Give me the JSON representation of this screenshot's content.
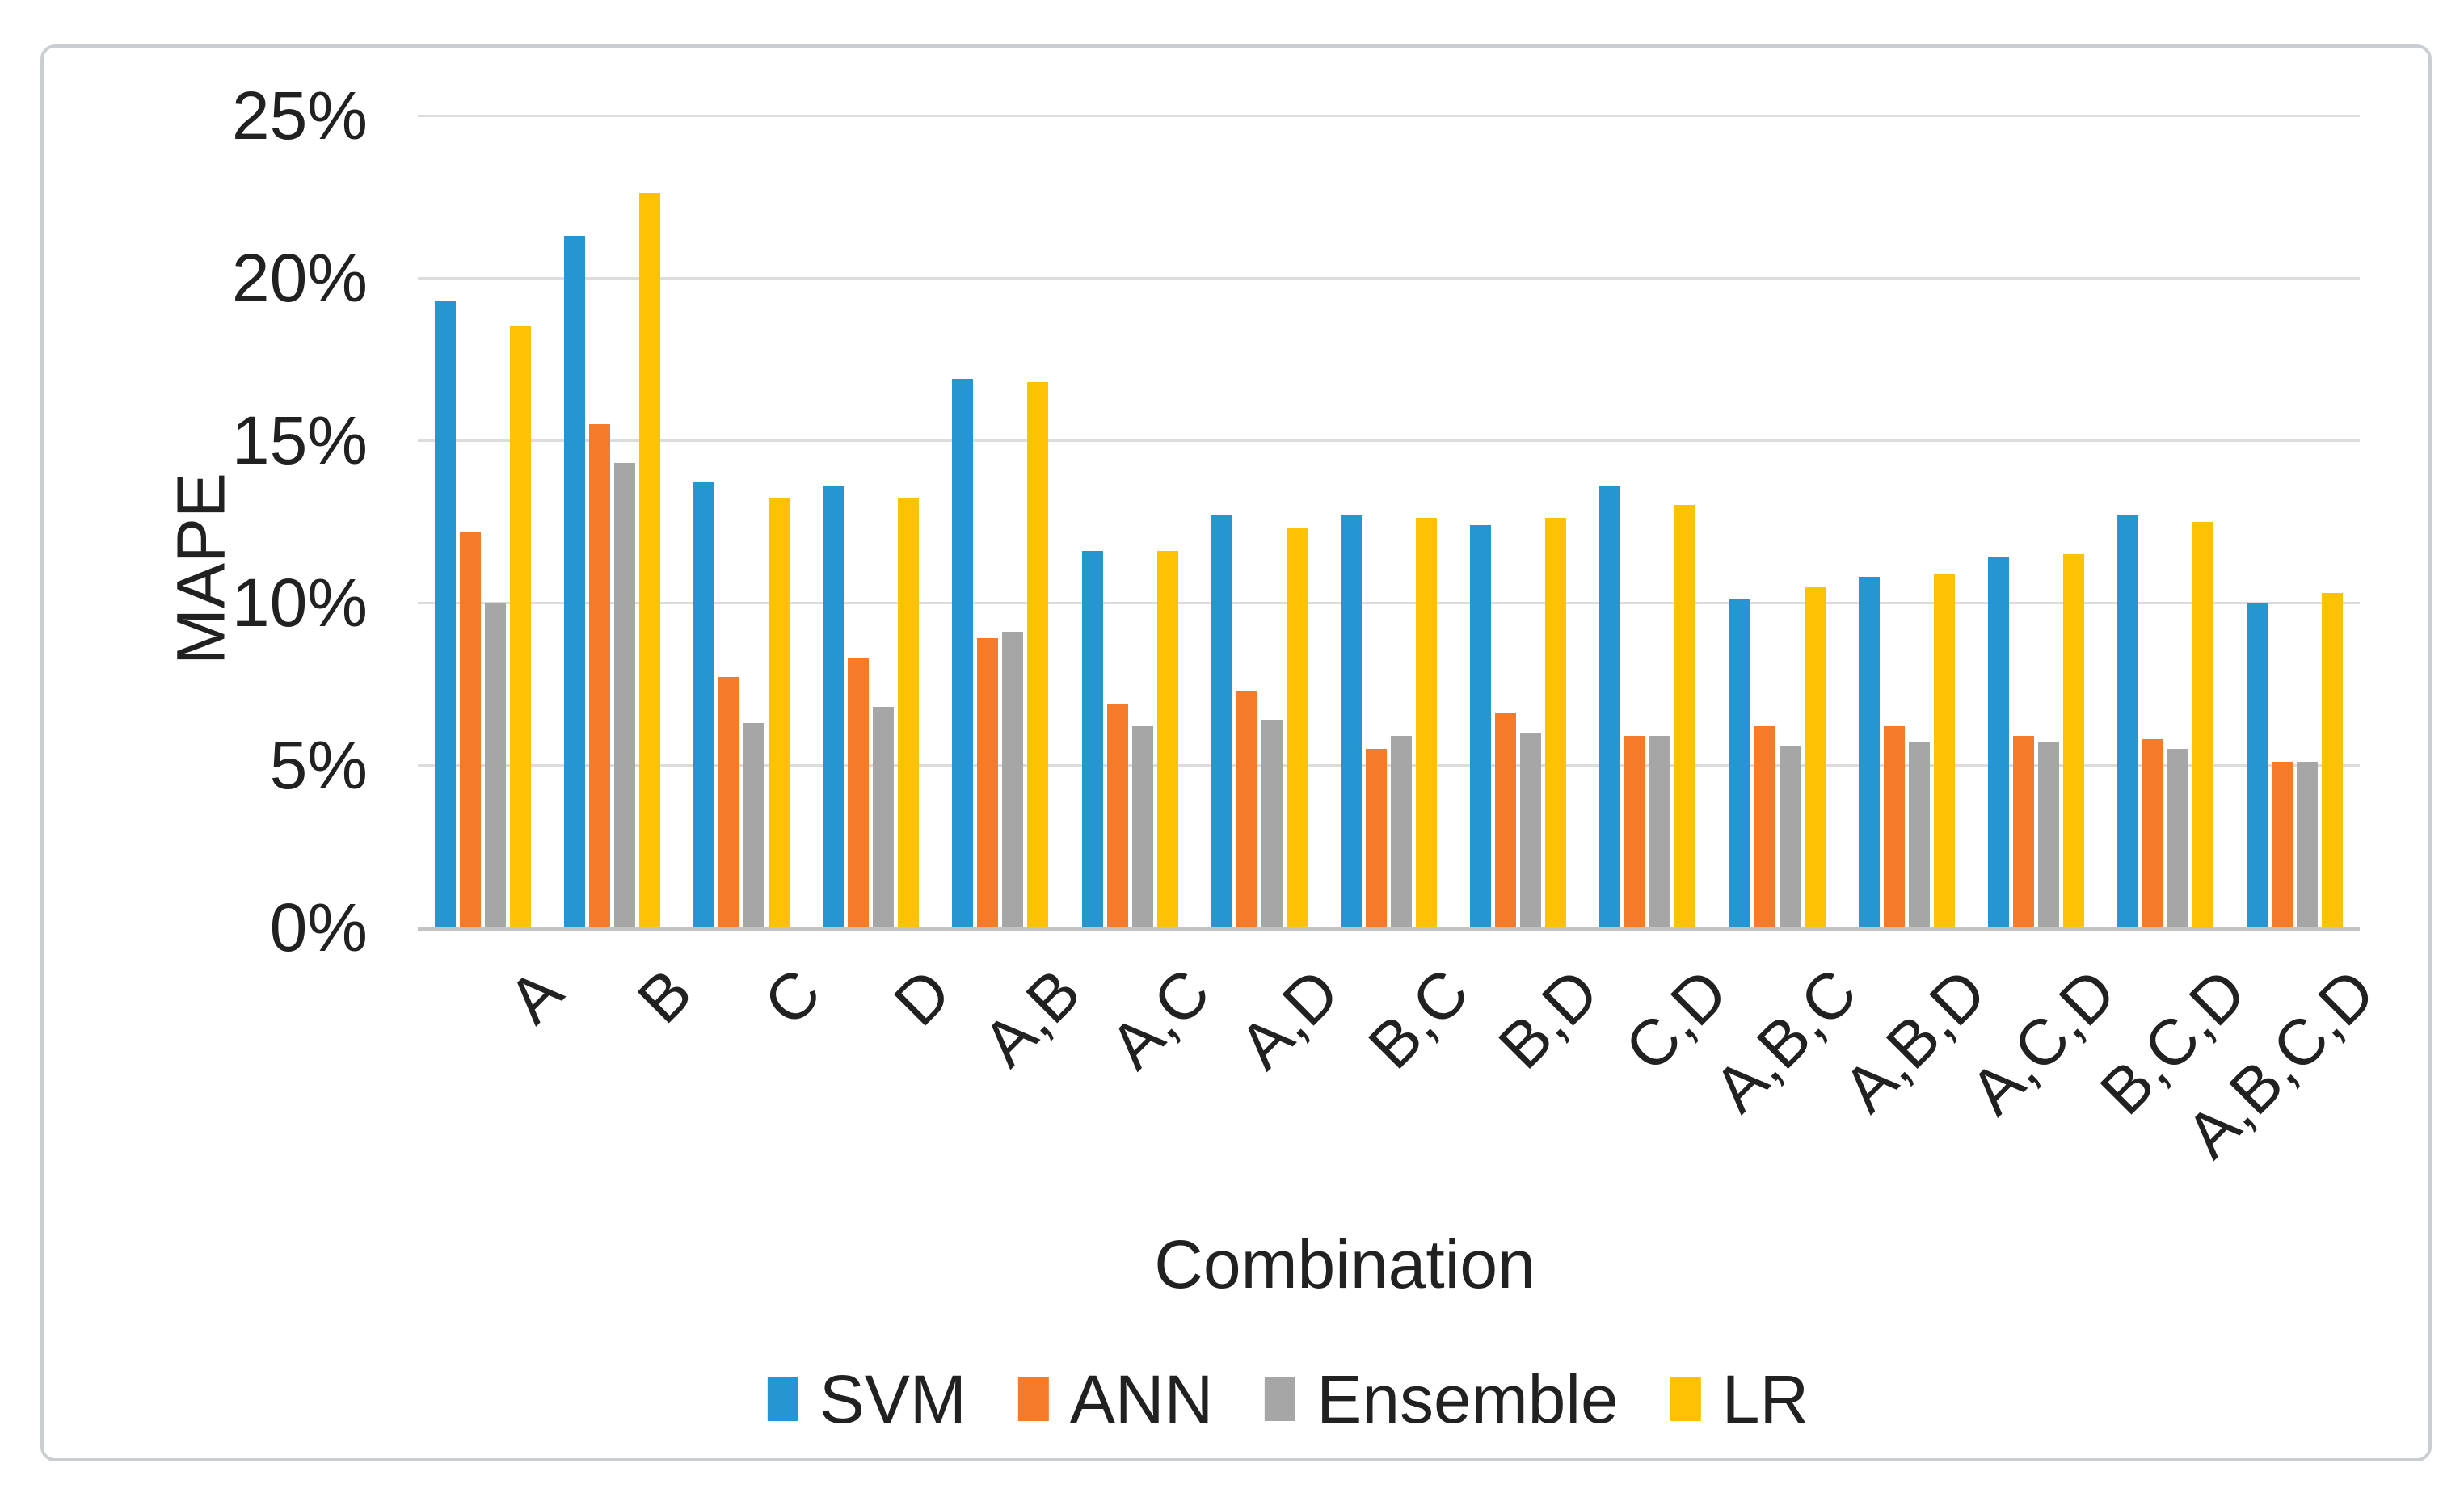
{
  "chart_data": {
    "type": "bar",
    "title": "",
    "xlabel": "Combination",
    "ylabel": "MAPE",
    "categories": [
      "A",
      "B",
      "C",
      "D",
      "A,B",
      "A,C",
      "A,D",
      "B,C",
      "B,D",
      "C,D",
      "A,B,C",
      "A,B,D",
      "A,C,D",
      "B,C,D",
      "A,B,C,D"
    ],
    "series": [
      {
        "name": "SVM",
        "color": "#2696D3",
        "values": [
          19.3,
          21.3,
          13.7,
          13.6,
          16.9,
          11.6,
          12.7,
          12.7,
          12.4,
          13.6,
          10.1,
          10.8,
          11.4,
          12.7,
          10.0
        ]
      },
      {
        "name": "ANN",
        "color": "#F57B2A",
        "values": [
          12.2,
          15.5,
          7.7,
          8.3,
          8.9,
          6.9,
          7.3,
          5.5,
          6.6,
          5.9,
          6.2,
          6.2,
          5.9,
          5.8,
          5.1
        ]
      },
      {
        "name": "Ensemble",
        "color": "#A6A6A6",
        "values": [
          10.0,
          14.3,
          6.3,
          6.8,
          9.1,
          6.2,
          6.4,
          5.9,
          6.0,
          5.9,
          5.6,
          5.7,
          5.7,
          5.5,
          5.1
        ]
      },
      {
        "name": "LR",
        "color": "#FFC103",
        "values": [
          18.5,
          22.6,
          13.2,
          13.2,
          16.8,
          11.6,
          12.3,
          12.6,
          12.6,
          13.0,
          10.5,
          10.9,
          11.5,
          12.5,
          10.3
        ]
      }
    ],
    "ylim": [
      0,
      25
    ],
    "ytick_step": 5,
    "ytick_labels": [
      "0%",
      "5%",
      "10%",
      "15%",
      "20%",
      "25%"
    ],
    "yaxis_format": "percent",
    "grid": true,
    "legend_position": "bottom"
  },
  "colors": {
    "text": "#212121",
    "gridline": "#dcdcdc",
    "axis_line": "#c3c3c3",
    "frame_border": "#cbced1",
    "background": "#ffffff"
  }
}
